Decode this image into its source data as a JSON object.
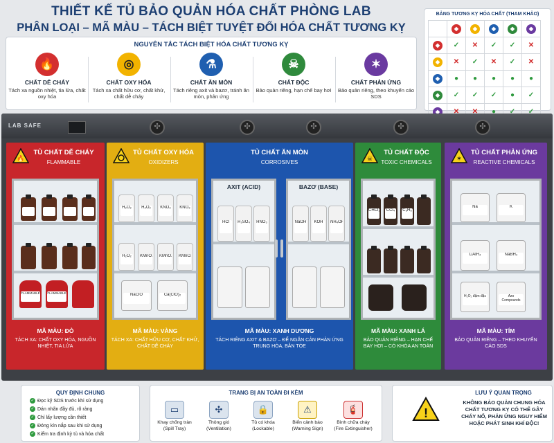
{
  "header": {
    "title": "THIẾT KẾ TỦ BẢO QUẢN HÓA CHẤT PHÒNG LAB",
    "subtitle": "PHÂN LOẠI – MÃ MÀU – TÁCH BIỆT TUYỆT ĐỐI HÓA CHẤT TƯƠNG KỴ"
  },
  "principles": {
    "title": "NGUYÊN TẮC TÁCH BIỆT HÓA CHẤT TƯƠNG KỴ",
    "items": [
      {
        "name": "CHẤT DỄ CHÁY",
        "desc": "Tách xa nguồn nhiệt, tia lửa, chất oxy hóa",
        "icon": "flame-icon",
        "color": "#d32f2f"
      },
      {
        "name": "CHẤT OXY HÓA",
        "desc": "Tách xa chất hữu cơ, chất khử, chất dễ cháy",
        "icon": "oxidizer-icon",
        "color": "#f2b300"
      },
      {
        "name": "CHẤT ĂN MÒN",
        "desc": "Tách riêng axit và bazơ, tránh ăn mòn, phản ứng",
        "icon": "corrosion-icon",
        "color": "#1f5fb0"
      },
      {
        "name": "CHẤT ĐỘC",
        "desc": "Bảo quản riêng, hạn chế bay hơi",
        "icon": "skull-icon",
        "color": "#2f8a3c"
      },
      {
        "name": "CHẤT PHẢN ỨNG",
        "desc": "Bảo quản riêng, theo khuyến cáo SDS",
        "icon": "reactive-icon",
        "color": "#6a3aa0"
      }
    ]
  },
  "compat": {
    "title": "BẢNG TƯƠNG KỴ HÓA CHẤT (THAM KHẢO)",
    "cols": [
      "#d32f2f",
      "#f2b300",
      "#1f5fb0",
      "#2f8a3c",
      "#6a3aa0"
    ],
    "rows": [
      [
        "ok",
        "no",
        "ok",
        "ok",
        "no"
      ],
      [
        "no",
        "ok",
        "no",
        "ok",
        "no"
      ],
      [
        "dot",
        "dot",
        "dot",
        "dot",
        "dot"
      ],
      [
        "ok",
        "ok",
        "ok",
        "dot",
        "ok"
      ],
      [
        "no",
        "no",
        "dot",
        "ok",
        "ok"
      ]
    ]
  },
  "cabinet": {
    "brand": "LAB SAFE",
    "sections": [
      {
        "title": "TỦ CHẤT DỄ CHÁY",
        "sub": "FLAMMABLE",
        "color": "#c8262b",
        "footer_code": "MÃ MÀU: ĐỎ",
        "footer_desc": "TÁCH XA: CHẤT OXY HÓA, NGUỒN NHIỆT, TIA LỬA",
        "labels": [
          "",
          "",
          "",
          "",
          "",
          "",
          "FLAMMABLE",
          "FLAMMABLE",
          ""
        ]
      },
      {
        "title": "TỦ CHẤT OXY HÓA",
        "sub": "OXIDIZERS",
        "color": "#e3ae12",
        "footer_code": "MÃ MÀU: VÀNG",
        "footer_desc": "TÁCH XA: CHẤT HỮU CƠ, CHẤT KHỬ, CHẤT DỄ CHÁY",
        "labels": [
          "H₂O₂",
          "H₂O₂",
          "KNO₃",
          "KNO₃",
          "H₂O₂",
          "KMnO₄",
          "KMnO₄",
          "KMnO₄",
          "NaClO",
          "Ca(ClO)₂"
        ]
      },
      {
        "title": "TỦ CHẤT ĂN MÒN",
        "sub": "CORROSIVES",
        "color": "#1d55ad",
        "footer_code": "MÃ MÀU: XANH DƯƠNG",
        "footer_desc": "TÁCH RIÊNG AXIT & BAZƠ – ĐỂ NGĂN CẢN PHẢN ỨNG TRUNG HÒA, BẮN TÓE",
        "acid": "AXIT (ACID)",
        "base": "BAZƠ (BASE)",
        "acid_labels": [
          "HCl",
          "H₂SO₄",
          "HNO₃"
        ],
        "base_labels": [
          "NaOH",
          "KOH",
          "NH₄OH"
        ]
      },
      {
        "title": "TỦ CHẤT ĐỘC",
        "sub": "TOXIC CHEMICALS",
        "color": "#2e8b3b",
        "footer_code": "MÃ MÀU: XANH LÁ",
        "footer_desc": "BẢO QUẢN RIÊNG – HẠN CHẾ BAY HƠI – CÓ KHÓA AN TOÀN",
        "labels": [
          "CHCl₃",
          "CCl₄",
          "C₆H₆",
          "",
          "",
          "",
          "",
          ""
        ]
      },
      {
        "title": "TỦ CHẤT PHẢN ỨNG",
        "sub": "REACTIVE CHEMICALS",
        "color": "#6b3a9e",
        "footer_code": "MÃ MÀU: TÍM",
        "footer_desc": "BẢO QUẢN RIÊNG – THEO KHUYẾN CÁO SDS",
        "labels": [
          "Na",
          "K",
          "LiAlH₄",
          "NaBH₄",
          "H₂O₂ đậm đặc",
          "Azo Compounds"
        ]
      }
    ]
  },
  "rules": {
    "title": "QUY ĐỊNH CHUNG",
    "items": [
      "Đọc kỹ SDS trước khi sử dụng",
      "Dán nhãn đầy đủ, rõ ràng",
      "Chỉ lấy lượng cần thiết",
      "Đóng kín nắp sau khi sử dụng",
      "Kiểm tra định kỳ tủ và hóa chất"
    ]
  },
  "equipment": {
    "title": "TRANG BỊ AN TOÀN ĐI KÈM",
    "items": [
      {
        "label": "Khay chống tràn (Spill Tray)",
        "icon": "spill-tray-icon"
      },
      {
        "label": "Thông gió (Ventilation)",
        "icon": "fan-icon"
      },
      {
        "label": "Tủ có khóa (Lockable)",
        "icon": "lock-icon"
      },
      {
        "label": "Biển cảnh báo (Warning Sign)",
        "icon": "warning-icon"
      },
      {
        "label": "Bình chữa cháy (Fire Extinguisher)",
        "icon": "extinguisher-icon"
      }
    ]
  },
  "note": {
    "title": "LƯU Ý QUAN TRỌNG",
    "text": "KHÔNG BẢO QUẢN CHUNG HÓA CHẤT TƯƠNG KỴ CÓ THỂ GÂY CHÁY NỔ, PHẢN ỨNG NGUY HIỂM HOẶC PHÁT SINH KHÍ ĐỘC!"
  }
}
